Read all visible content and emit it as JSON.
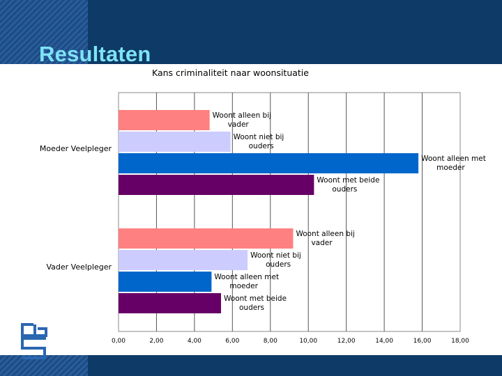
{
  "slide": {
    "title": "Resultaten",
    "background_color": "#0d3a66",
    "left_band_color": "#1f4f8a"
  },
  "logo": {
    "name": "cbs-logo-icon"
  },
  "chart_data": {
    "type": "bar",
    "orientation": "horizontal",
    "title": "Kans criminaliteit naar woonsituatie",
    "xlabel": "",
    "ylabel": "",
    "xlim": [
      0,
      18
    ],
    "x_ticks": [
      "0,00",
      "2,00",
      "4,00",
      "6,00",
      "8,00",
      "10,00",
      "12,00",
      "14,00",
      "16,00",
      "18,00"
    ],
    "grid": "vertical",
    "legend": "none (bar labels)",
    "categories": [
      "Moeder Veelpleger",
      "Vader Veelpleger"
    ],
    "series": [
      {
        "color": "#ff8080",
        "labels": [
          "Woont alleen bij vader",
          "Woont alleen bij vader"
        ],
        "values": [
          4.8,
          9.2
        ]
      },
      {
        "color": "#ccccff",
        "labels": [
          "Woont niet bij ouders",
          "Woont niet bij ouders"
        ],
        "values": [
          5.9,
          6.8
        ]
      },
      {
        "color": "#0066cc",
        "labels": [
          "Woont alleen met moeder",
          "Woont alleen met moeder"
        ],
        "values": [
          15.8,
          4.9
        ]
      },
      {
        "color": "#660066",
        "labels": [
          "Woont met beide ouders",
          "Woont met beide ouders"
        ],
        "values": [
          10.3,
          5.4
        ]
      }
    ]
  }
}
